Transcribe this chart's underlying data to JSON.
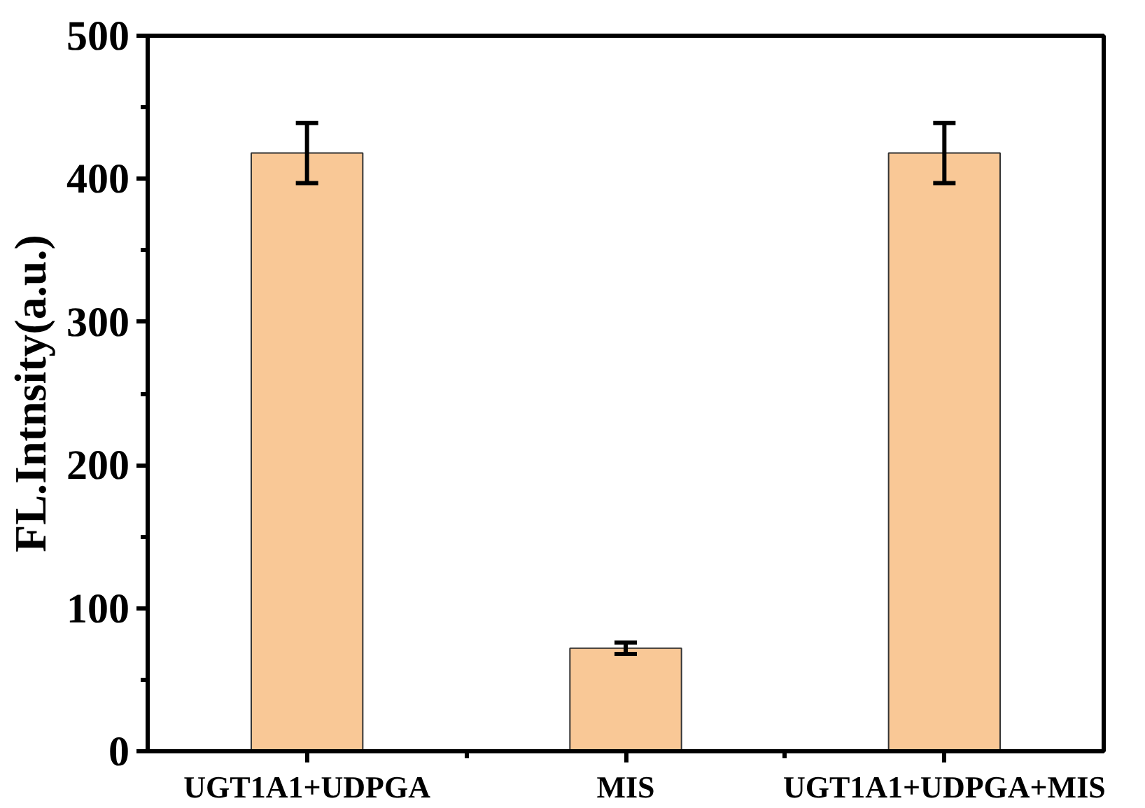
{
  "chart_data": {
    "type": "bar",
    "ylabel": "FL.Intnsity(a.u.)",
    "categories": [
      "UGT1A1+UDPGA",
      "MIS",
      "UGT1A1+UDPGA+MIS"
    ],
    "values": [
      418,
      72,
      418
    ],
    "errors": [
      21,
      4,
      21
    ],
    "color": "#f9c896",
    "ylim": [
      0,
      500
    ],
    "yticks": [
      0,
      100,
      200,
      300,
      400,
      500
    ],
    "grid": false
  }
}
